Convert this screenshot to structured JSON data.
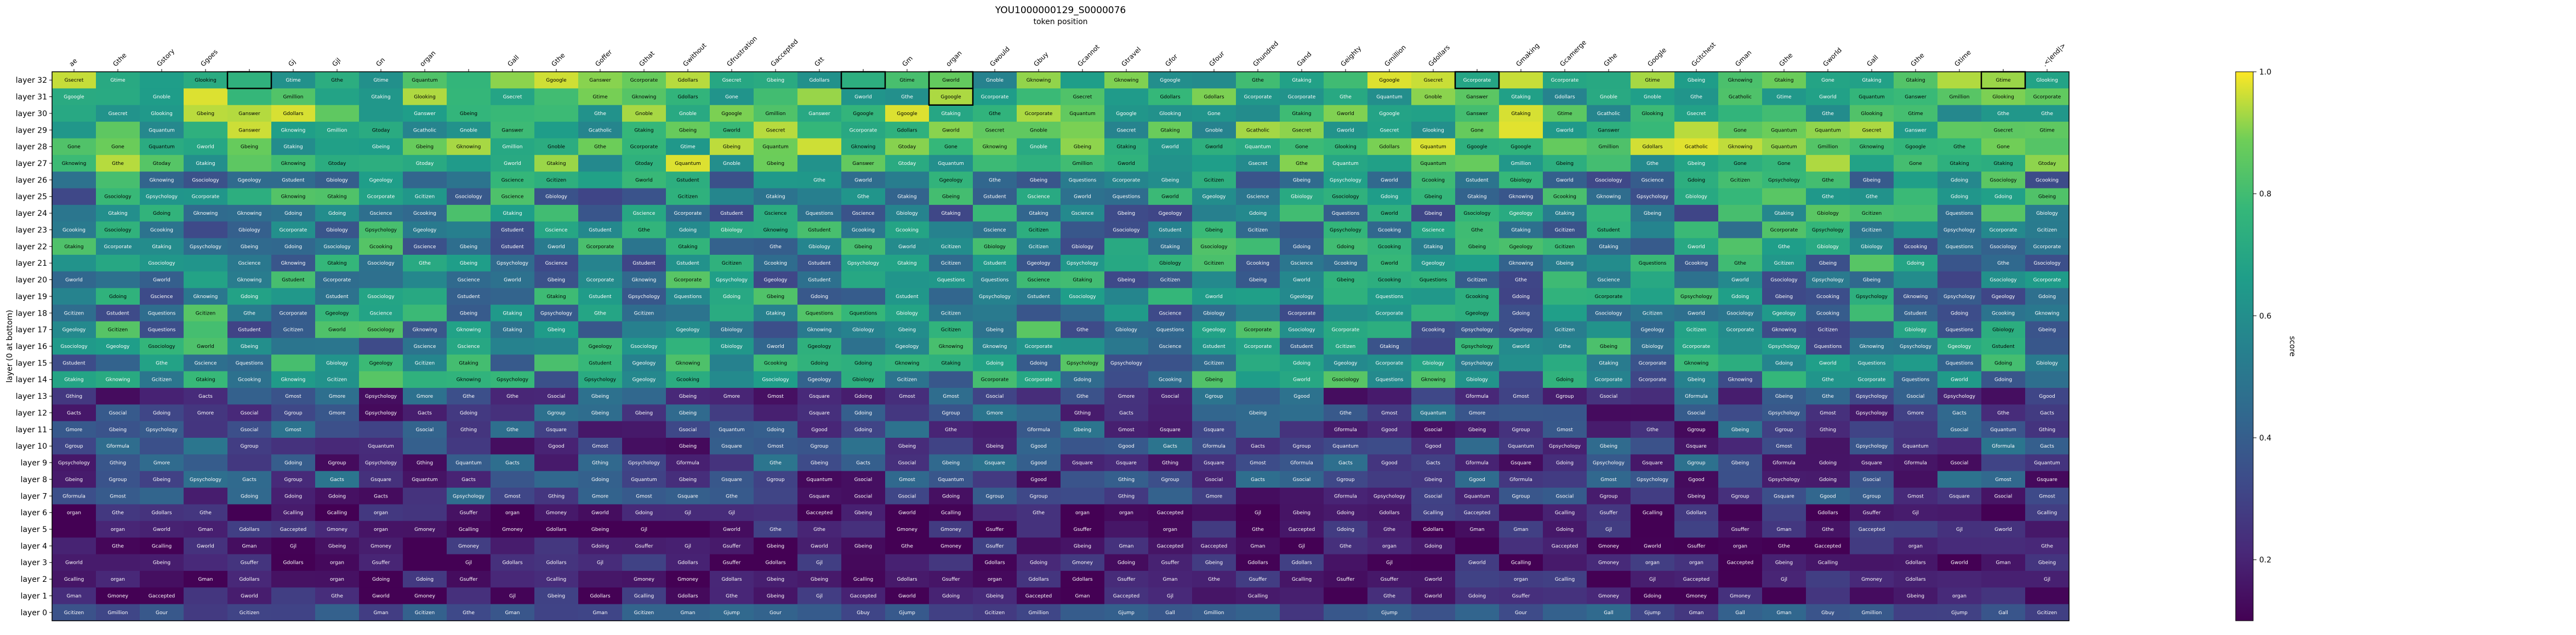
{
  "chart_data": {
    "type": "heatmap",
    "title": "YOU1000000129_S0000076",
    "xlabel": "token position",
    "ylabel": "layer (0 at bottom)",
    "colorbar_label": "score",
    "colorbar_ticks": [
      "0.2",
      "0.4",
      "0.6",
      "0.8",
      "1.0"
    ],
    "vmin": 0.1,
    "vmax": 1.0,
    "colormap": "viridis",
    "x_tokens": [
      "ae",
      "Gthe",
      "Gstory",
      "Ggoes",
      "",
      "Gj",
      "Gjl",
      "Gn",
      "organ",
      "",
      "Gall",
      "Gthe",
      "Goffer",
      "Gthat",
      "Gwithout",
      "Gfrustration",
      "Gaccepted",
      "Gtt",
      "",
      "Gm",
      "organ",
      "Gwould",
      "Gbuy",
      "Gcannot",
      "Gtravel",
      "Gfor",
      "Gfour",
      "Ghundred",
      "Gand",
      "Geighty",
      "Gmillion",
      "Gdollars",
      "",
      "Gmaking",
      "Gcamerge",
      "Gthe",
      "Google",
      "Gcitchest",
      "Gman",
      "Gthe",
      "Gworld",
      "Gall",
      "Gthe",
      "Gtime",
      "",
      ".<|end|>"
    ],
    "y_labels": [
      "layer 32",
      "layer 31",
      "layer 30",
      "layer 29",
      "layer 28",
      "layer 27",
      "layer 26",
      "layer 25",
      "layer 24",
      "layer 23",
      "layer 22",
      "layer 21",
      "layer 20",
      "layer 19",
      "layer 18",
      "layer 17",
      "layer 16",
      "layer 15",
      "layer 14",
      "layer 13",
      "layer 12",
      "layer 11",
      "layer 10",
      "layer 9",
      "layer 8",
      "layer 7",
      "layer 6",
      "layer 5",
      "layer 4",
      "layer 3",
      "layer 2",
      "layer 1",
      "layer 0"
    ],
    "bands": [
      {
        "layers": [
          32,
          27
        ],
        "words": [
          "Gthe",
          "Ganswer",
          "Gcatholic",
          "Gtaking",
          "Gcorporate",
          "Glooking",
          "Gbeing",
          "Gnoble",
          "Gtoday",
          "Gone",
          "Gsecret",
          "Gtime",
          "Gmillion",
          "Gdollars",
          "Ggoogle",
          "Gworld",
          "Gknowing",
          "Gquantum"
        ],
        "lo": 0.55,
        "hi": 0.98
      },
      {
        "layers": [
          26,
          14
        ],
        "words": [
          "Gbeing",
          "Gsociology",
          "Gquestions",
          "Gpsychology",
          "Gcorporate",
          "Ggeology",
          "Gtaking",
          "Gknowing",
          "Gbiology",
          "Gstudent",
          "Gscience",
          "Gcooking",
          "Gworld",
          "Gthe",
          "Gdoing",
          "Gcitizen"
        ],
        "lo": 0.3,
        "hi": 0.85
      },
      {
        "layers": [
          13,
          7
        ],
        "words": [
          "Gthe",
          "Gbeing",
          "Gsocial",
          "Ggroup",
          "Gsquare",
          "Gformula",
          "Gquantum",
          "Gthing",
          "Gpsychology",
          "Gdoing",
          "Gacts",
          "Gmost",
          "Ggood",
          "Gmore"
        ],
        "lo": 0.12,
        "hi": 0.5
      },
      {
        "layers": [
          6,
          1
        ],
        "words": [
          "Gthe",
          "Gdoing",
          "Gbeing",
          "Gjl",
          "organ",
          "Gmoney",
          "Gsuffer",
          "Gcalling",
          "Gaccepted",
          "Gdollars",
          "Gworld",
          "Gman"
        ],
        "lo": 0.05,
        "hi": 0.3
      },
      {
        "layers": [
          0,
          0
        ],
        "words": [
          "Gthe",
          "Gour",
          "Gcitizen",
          "Gall",
          "Gjump",
          "Gbuy",
          "Gmillion",
          "Gman"
        ],
        "lo": 0.22,
        "hi": 0.45
      }
    ],
    "highlight_cells": [
      {
        "layer": 32,
        "token": 4
      },
      {
        "layer": 32,
        "token": 18
      },
      {
        "layer": 32,
        "token": 20
      },
      {
        "layer": 31,
        "token": 20
      },
      {
        "layer": 32,
        "token": 32
      },
      {
        "layer": 32,
        "token": 44
      }
    ]
  }
}
